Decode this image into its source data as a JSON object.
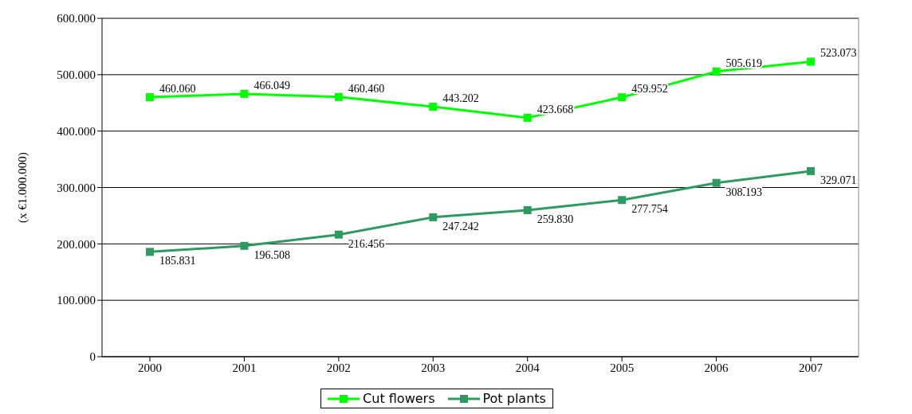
{
  "chart_data": {
    "type": "line",
    "ylabel": "(x €1.000.000)",
    "categories": [
      "2000",
      "2001",
      "2002",
      "2003",
      "2004",
      "2005",
      "2006",
      "2007"
    ],
    "series": [
      {
        "name": "Cut flowers",
        "color": "#00ff00",
        "values": [
          460060,
          466049,
          460460,
          443202,
          423668,
          459952,
          505619,
          523073
        ],
        "value_labels": [
          "460.060",
          "466.049",
          "460.460",
          "443.202",
          "423.668",
          "459.952",
          "505.619",
          "523.073"
        ]
      },
      {
        "name": "Pot plants",
        "color": "#2e9960",
        "values": [
          185831,
          196508,
          216456,
          247242,
          259830,
          277754,
          308193,
          329071
        ],
        "value_labels": [
          "185.831",
          "196.508",
          "216.456",
          "247.242",
          "259.830",
          "277.754",
          "308.193",
          "329.071"
        ]
      }
    ],
    "ylim": [
      0,
      600000
    ],
    "yticks": [
      {
        "value": 0,
        "label": "0"
      },
      {
        "value": 100000,
        "label": "100.000"
      },
      {
        "value": 200000,
        "label": "200.000"
      },
      {
        "value": 300000,
        "label": "300.000"
      },
      {
        "value": 400000,
        "label": "400.000"
      },
      {
        "value": 500000,
        "label": "500.000"
      },
      {
        "value": 600000,
        "label": "600.000"
      }
    ],
    "grid": "y",
    "legend": "bottom",
    "marker": "square",
    "line_style": "solid"
  }
}
